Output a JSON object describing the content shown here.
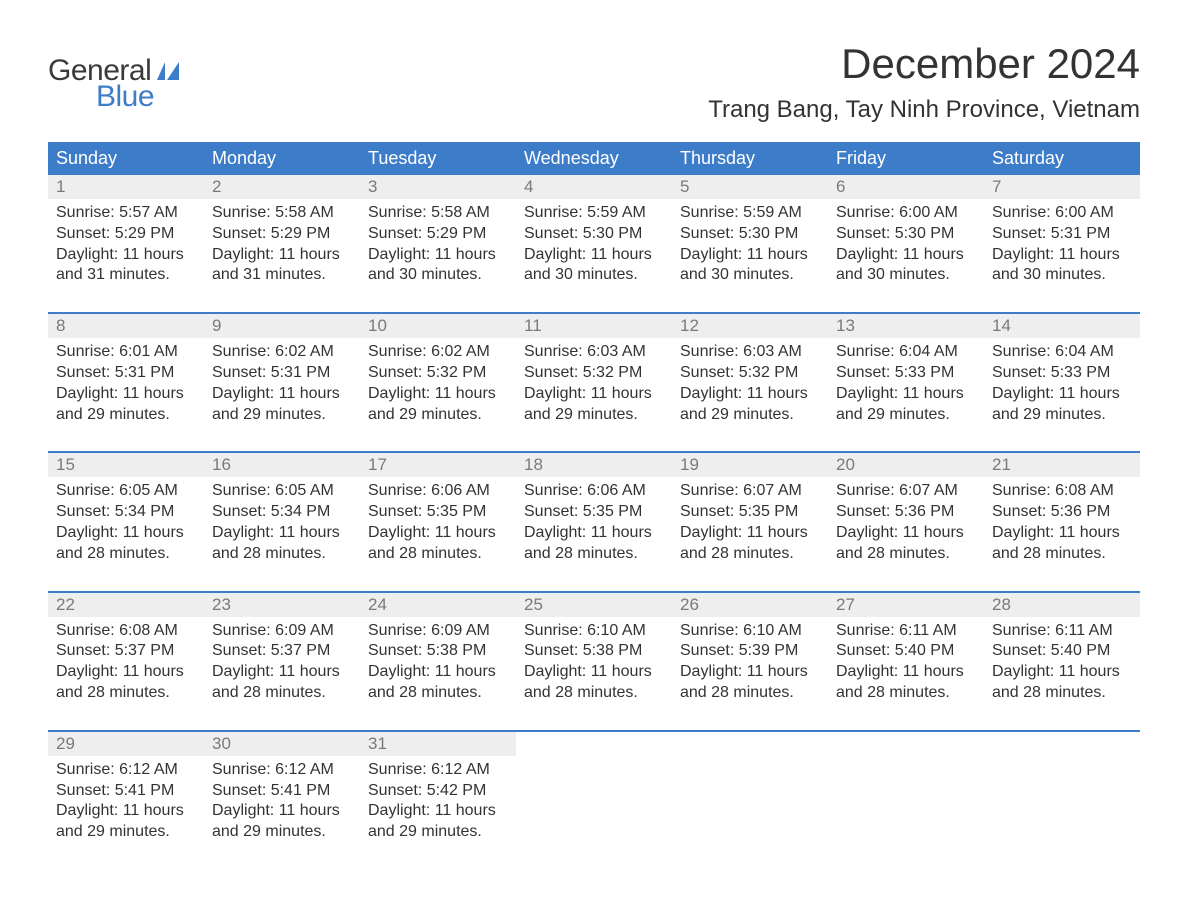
{
  "logo": {
    "text_general": "General",
    "text_blue": "Blue",
    "flag_color": "#3d7cc9"
  },
  "header": {
    "month_title": "December 2024",
    "location": "Trang Bang, Tay Ninh Province, Vietnam"
  },
  "colors": {
    "header_bg": "#3d7cc9",
    "daynum_bg": "#eeeeee",
    "daynum_text": "#7a7a7a",
    "body_text": "#333333",
    "logo_gray": "#3a3a3a",
    "logo_blue": "#3d7cc9",
    "page_bg": "#ffffff"
  },
  "typography": {
    "month_title_fontsize": 42,
    "location_fontsize": 24,
    "dayheader_fontsize": 18,
    "daynum_fontsize": 17,
    "cell_fontsize": 16,
    "logo_fontsize": 30
  },
  "calendar": {
    "type": "table",
    "day_headers": [
      "Sunday",
      "Monday",
      "Tuesday",
      "Wednesday",
      "Thursday",
      "Friday",
      "Saturday"
    ],
    "labels": {
      "sunrise_prefix": "Sunrise: ",
      "sunset_prefix": "Sunset: ",
      "daylight_prefix": "Daylight: ",
      "daylight_join": " and ",
      "daylight_suffix": "."
    },
    "weeks": [
      [
        {
          "day": "1",
          "sunrise": "5:57 AM",
          "sunset": "5:29 PM",
          "dl_h": "11 hours",
          "dl_m": "31 minutes"
        },
        {
          "day": "2",
          "sunrise": "5:58 AM",
          "sunset": "5:29 PM",
          "dl_h": "11 hours",
          "dl_m": "31 minutes"
        },
        {
          "day": "3",
          "sunrise": "5:58 AM",
          "sunset": "5:29 PM",
          "dl_h": "11 hours",
          "dl_m": "30 minutes"
        },
        {
          "day": "4",
          "sunrise": "5:59 AM",
          "sunset": "5:30 PM",
          "dl_h": "11 hours",
          "dl_m": "30 minutes"
        },
        {
          "day": "5",
          "sunrise": "5:59 AM",
          "sunset": "5:30 PM",
          "dl_h": "11 hours",
          "dl_m": "30 minutes"
        },
        {
          "day": "6",
          "sunrise": "6:00 AM",
          "sunset": "5:30 PM",
          "dl_h": "11 hours",
          "dl_m": "30 minutes"
        },
        {
          "day": "7",
          "sunrise": "6:00 AM",
          "sunset": "5:31 PM",
          "dl_h": "11 hours",
          "dl_m": "30 minutes"
        }
      ],
      [
        {
          "day": "8",
          "sunrise": "6:01 AM",
          "sunset": "5:31 PM",
          "dl_h": "11 hours",
          "dl_m": "29 minutes"
        },
        {
          "day": "9",
          "sunrise": "6:02 AM",
          "sunset": "5:31 PM",
          "dl_h": "11 hours",
          "dl_m": "29 minutes"
        },
        {
          "day": "10",
          "sunrise": "6:02 AM",
          "sunset": "5:32 PM",
          "dl_h": "11 hours",
          "dl_m": "29 minutes"
        },
        {
          "day": "11",
          "sunrise": "6:03 AM",
          "sunset": "5:32 PM",
          "dl_h": "11 hours",
          "dl_m": "29 minutes"
        },
        {
          "day": "12",
          "sunrise": "6:03 AM",
          "sunset": "5:32 PM",
          "dl_h": "11 hours",
          "dl_m": "29 minutes"
        },
        {
          "day": "13",
          "sunrise": "6:04 AM",
          "sunset": "5:33 PM",
          "dl_h": "11 hours",
          "dl_m": "29 minutes"
        },
        {
          "day": "14",
          "sunrise": "6:04 AM",
          "sunset": "5:33 PM",
          "dl_h": "11 hours",
          "dl_m": "29 minutes"
        }
      ],
      [
        {
          "day": "15",
          "sunrise": "6:05 AM",
          "sunset": "5:34 PM",
          "dl_h": "11 hours",
          "dl_m": "28 minutes"
        },
        {
          "day": "16",
          "sunrise": "6:05 AM",
          "sunset": "5:34 PM",
          "dl_h": "11 hours",
          "dl_m": "28 minutes"
        },
        {
          "day": "17",
          "sunrise": "6:06 AM",
          "sunset": "5:35 PM",
          "dl_h": "11 hours",
          "dl_m": "28 minutes"
        },
        {
          "day": "18",
          "sunrise": "6:06 AM",
          "sunset": "5:35 PM",
          "dl_h": "11 hours",
          "dl_m": "28 minutes"
        },
        {
          "day": "19",
          "sunrise": "6:07 AM",
          "sunset": "5:35 PM",
          "dl_h": "11 hours",
          "dl_m": "28 minutes"
        },
        {
          "day": "20",
          "sunrise": "6:07 AM",
          "sunset": "5:36 PM",
          "dl_h": "11 hours",
          "dl_m": "28 minutes"
        },
        {
          "day": "21",
          "sunrise": "6:08 AM",
          "sunset": "5:36 PM",
          "dl_h": "11 hours",
          "dl_m": "28 minutes"
        }
      ],
      [
        {
          "day": "22",
          "sunrise": "6:08 AM",
          "sunset": "5:37 PM",
          "dl_h": "11 hours",
          "dl_m": "28 minutes"
        },
        {
          "day": "23",
          "sunrise": "6:09 AM",
          "sunset": "5:37 PM",
          "dl_h": "11 hours",
          "dl_m": "28 minutes"
        },
        {
          "day": "24",
          "sunrise": "6:09 AM",
          "sunset": "5:38 PM",
          "dl_h": "11 hours",
          "dl_m": "28 minutes"
        },
        {
          "day": "25",
          "sunrise": "6:10 AM",
          "sunset": "5:38 PM",
          "dl_h": "11 hours",
          "dl_m": "28 minutes"
        },
        {
          "day": "26",
          "sunrise": "6:10 AM",
          "sunset": "5:39 PM",
          "dl_h": "11 hours",
          "dl_m": "28 minutes"
        },
        {
          "day": "27",
          "sunrise": "6:11 AM",
          "sunset": "5:40 PM",
          "dl_h": "11 hours",
          "dl_m": "28 minutes"
        },
        {
          "day": "28",
          "sunrise": "6:11 AM",
          "sunset": "5:40 PM",
          "dl_h": "11 hours",
          "dl_m": "28 minutes"
        }
      ],
      [
        {
          "day": "29",
          "sunrise": "6:12 AM",
          "sunset": "5:41 PM",
          "dl_h": "11 hours",
          "dl_m": "29 minutes"
        },
        {
          "day": "30",
          "sunrise": "6:12 AM",
          "sunset": "5:41 PM",
          "dl_h": "11 hours",
          "dl_m": "29 minutes"
        },
        {
          "day": "31",
          "sunrise": "6:12 AM",
          "sunset": "5:42 PM",
          "dl_h": "11 hours",
          "dl_m": "29 minutes"
        },
        null,
        null,
        null,
        null
      ]
    ]
  }
}
